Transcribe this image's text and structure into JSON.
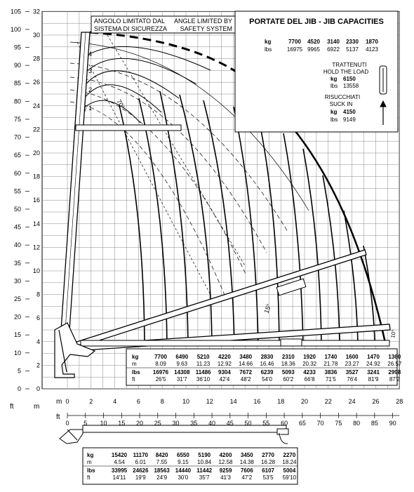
{
  "axes": {
    "left_ft": [
      "105",
      "100",
      "95",
      "90",
      "85",
      "80",
      "75",
      "70",
      "65",
      "60",
      "55",
      "50",
      "45",
      "40",
      "35",
      "30",
      "25",
      "20",
      "15",
      "10",
      "5",
      "0"
    ],
    "left_m": [
      "32",
      "30",
      "28",
      "26",
      "24",
      "22",
      "20",
      "18",
      "16",
      "14",
      "12",
      "10",
      "8",
      "6",
      "4",
      "2",
      "0"
    ],
    "ft_unit": "ft",
    "m_unit": "m",
    "bottom_m": [
      "0",
      "2",
      "4",
      "6",
      "8",
      "10",
      "12",
      "14",
      "16",
      "18",
      "20",
      "22",
      "24",
      "26",
      "28"
    ],
    "bottom_ft": [
      "0",
      "5",
      "10",
      "15",
      "20",
      "25",
      "30",
      "35",
      "40",
      "45",
      "50",
      "55",
      "60",
      "65",
      "70",
      "75",
      "80",
      "85",
      "90"
    ],
    "bottom_m_label": "m",
    "bottom_ft_label": "ft"
  },
  "angle_box": {
    "it_line1": "ANGOLO LIMITATO DAL",
    "it_line2": "SISTEMA DI SICUREZZA",
    "en_line1": "ANGLE LIMITED BY",
    "en_line2": "SAFETY SYSTEM"
  },
  "jib_box": {
    "title": "PORTATE DEL JIB  -  JIB CAPACITIES",
    "kg_label": "kg",
    "lbs_label": "lbs",
    "kg": [
      "7700",
      "4520",
      "3140",
      "2330",
      "1870"
    ],
    "lbs": [
      "16975",
      "9965",
      "6922",
      "5137",
      "4123"
    ],
    "hold_line1": "TRATTENUTI",
    "hold_line2": "HOLD THE LOAD",
    "hold_kg_label": "kg",
    "hold_kg": "6150",
    "hold_lbs_label": "lbs",
    "hold_lbs": "13558",
    "suck_line1": "RISUCCHIATI",
    "suck_line2": "SUCK IN",
    "suck_kg_label": "kg",
    "suck_kg": "4150",
    "suck_lbs_label": "lbs",
    "suck_lbs": "9149"
  },
  "jib_numbers": [
    "4",
    "3",
    "2",
    "1",
    "0'"
  ],
  "angle_labels": {
    "a70": "70°",
    "a15": "15°",
    "a10": "10°"
  },
  "main_table": {
    "labels": [
      "kg",
      "m",
      "lbs",
      "ft"
    ],
    "kg": [
      "7700",
      "6490",
      "5210",
      "4220",
      "3480",
      "2830",
      "2310",
      "1920",
      "1740",
      "1600",
      "1470",
      "1360"
    ],
    "m": [
      "8.09",
      "9.63",
      "11.23",
      "12.92",
      "14.66",
      "16.46",
      "18.36",
      "20.32",
      "21.78",
      "23.27",
      "24.92",
      "26.57"
    ],
    "lbs": [
      "16976",
      "14308",
      "11486",
      "9304",
      "7672",
      "6239",
      "5093",
      "4233",
      "3836",
      "3527",
      "3241",
      "2998"
    ],
    "ft": [
      "26'5",
      "31'7",
      "36'10",
      "42'4",
      "48'2",
      "54'0",
      "60'2",
      "66'8",
      "71'5",
      "76'4",
      "81'9",
      "87'2"
    ]
  },
  "bottom_table": {
    "labels": [
      "kg",
      "m",
      "lbs",
      "ft"
    ],
    "kg": [
      "15420",
      "11170",
      "8420",
      "6550",
      "5190",
      "4200",
      "3450",
      "2770",
      "2270"
    ],
    "m": [
      "4.54",
      "6.01",
      "7.55",
      "9.15",
      "10.84",
      "12.58",
      "14.38",
      "16.28",
      "18.24"
    ],
    "lbs": [
      "33995",
      "24626",
      "18563",
      "14440",
      "11442",
      "9259",
      "7606",
      "6107",
      "5004"
    ],
    "ft": [
      "14'11",
      "19'9",
      "24'9",
      "30'0",
      "35'7",
      "41'3",
      "47'2",
      "53'5",
      "59'10"
    ]
  }
}
